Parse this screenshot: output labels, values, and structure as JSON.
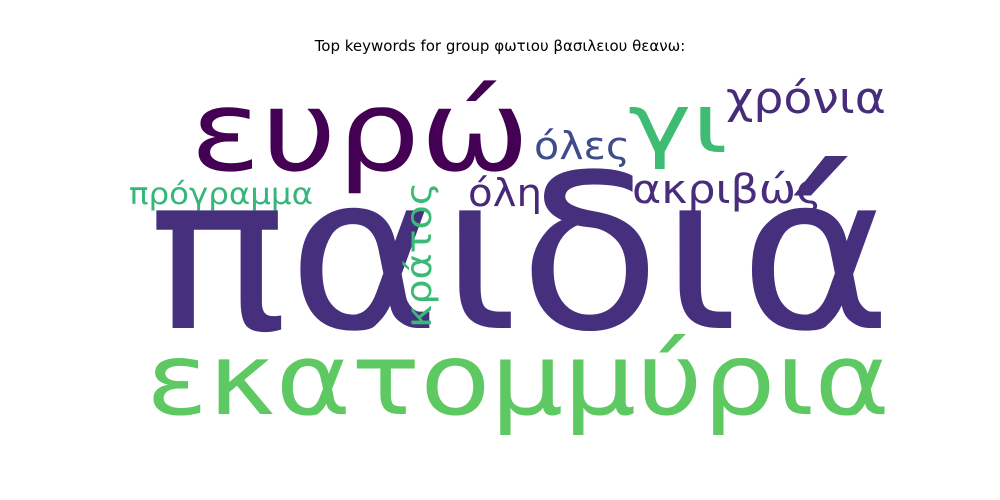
{
  "chart_data": {
    "type": "wordcloud",
    "title": "Top keywords for group φωτιου βασιλειου θεανω:",
    "words": [
      {
        "text": "παιδιά",
        "color": "#46307e"
      },
      {
        "text": "εκατομμύρια",
        "color": "#5ec962"
      },
      {
        "text": "ευρώ",
        "color": "#440154"
      },
      {
        "text": "γι",
        "color": "#3fbc73"
      },
      {
        "text": "χρόνια",
        "color": "#472c7a"
      },
      {
        "text": "όλες",
        "color": "#3e4c8a"
      },
      {
        "text": "ακριβώς",
        "color": "#472d7b"
      },
      {
        "text": "όλη",
        "color": "#482979"
      },
      {
        "text": "πρόγραμμα",
        "color": "#35b779"
      },
      {
        "text": "κράτος",
        "color": "#3aba76"
      }
    ]
  }
}
